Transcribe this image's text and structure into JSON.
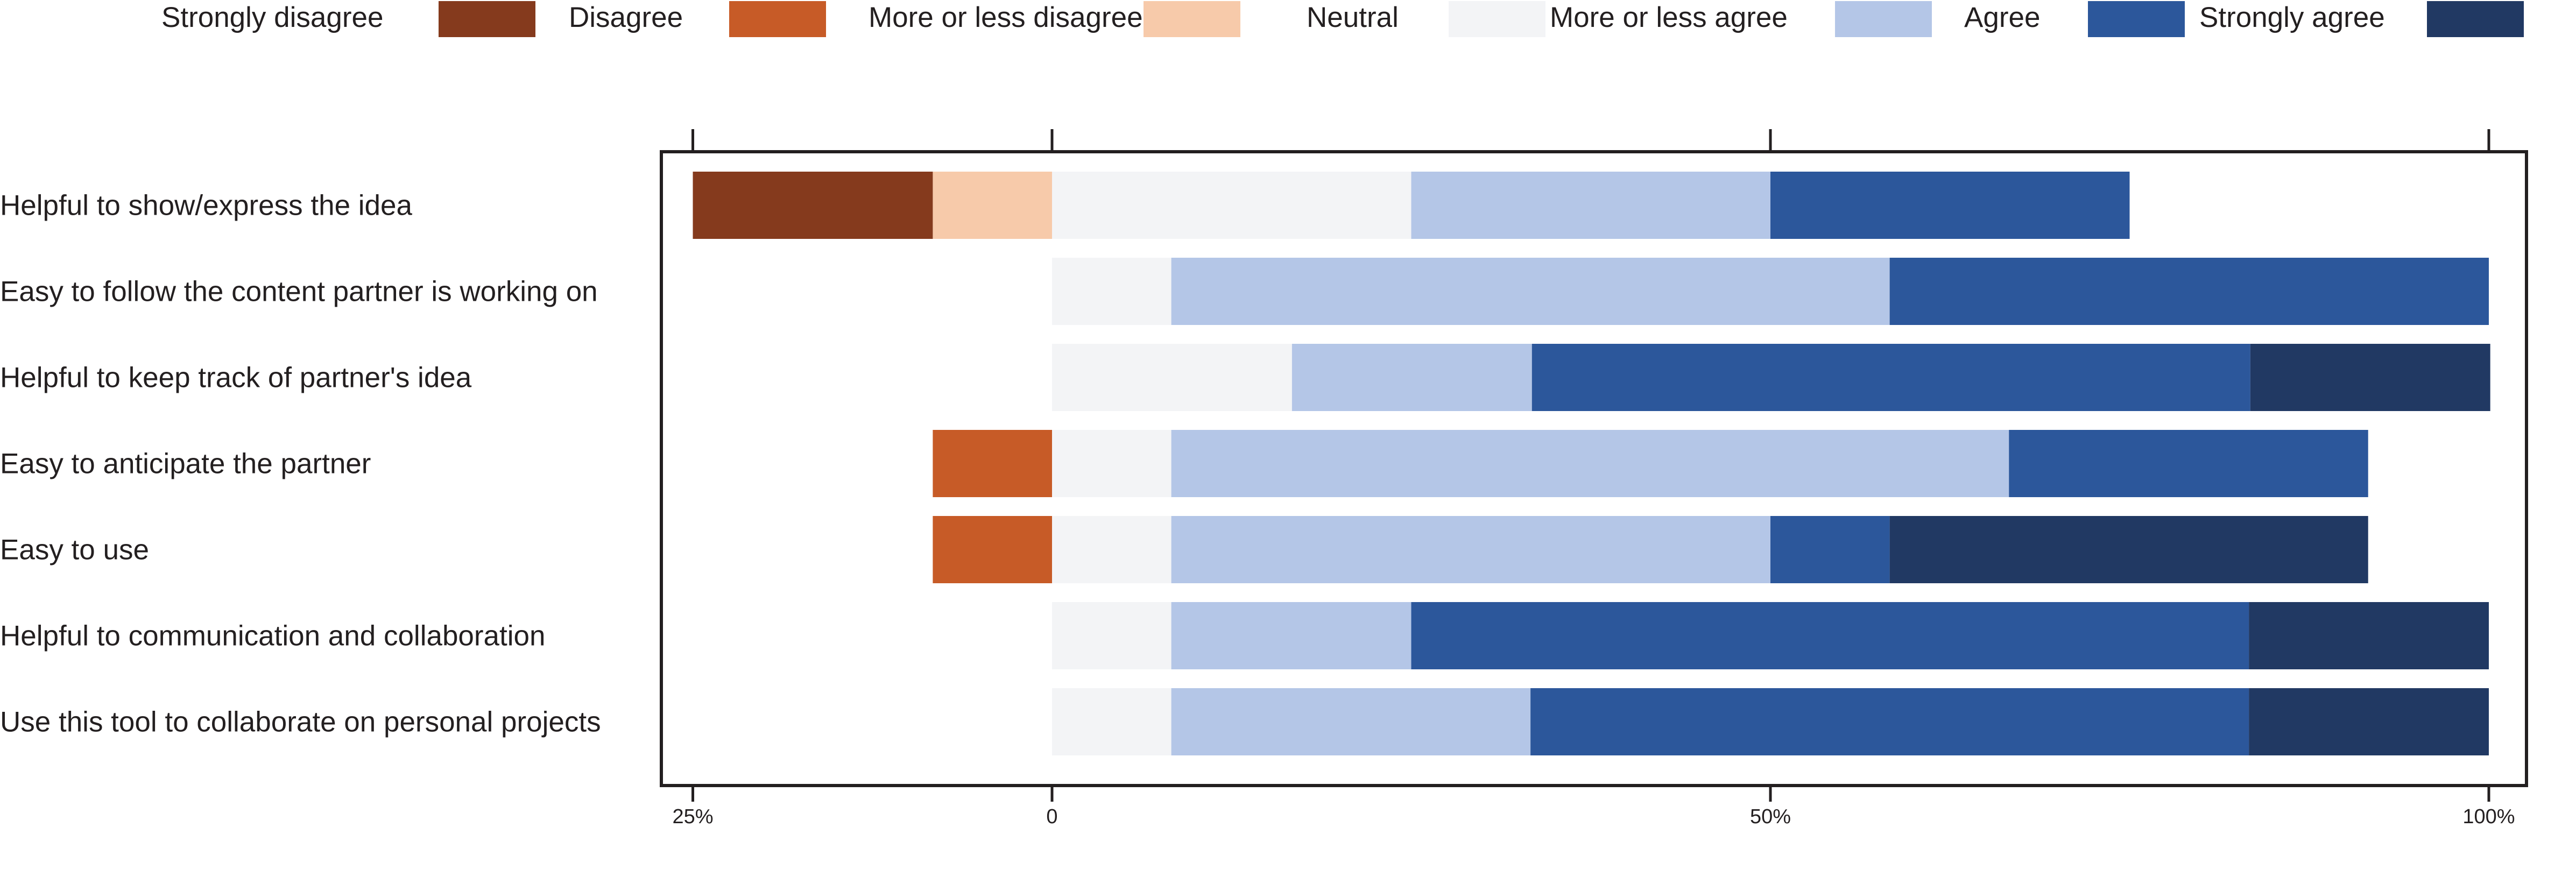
{
  "chart_data": {
    "type": "bar",
    "orientation": "horizontal",
    "stacked": "diverging",
    "legend": {
      "position": "top",
      "entries": [
        {
          "label": "Strongly disagree",
          "color": "#853a1d"
        },
        {
          "label": "Disagree",
          "color": "#c75b27"
        },
        {
          "label": "More or less disagree",
          "color": "#f7caaa"
        },
        {
          "label": "Neutral",
          "color": "#f3f4f6"
        },
        {
          "label": "More or less agree",
          "color": "#b4c6e7"
        },
        {
          "label": "Agree",
          "color": "#2c579b"
        },
        {
          "label": "Strongly agree",
          "color": "#213963"
        }
      ]
    },
    "xlim": [
      -25,
      100
    ],
    "xticks": [
      {
        "value": -25,
        "label": "25%"
      },
      {
        "value": 0,
        "label": "0"
      },
      {
        "value": 50,
        "label": "50%"
      },
      {
        "value": 100,
        "label": "100%"
      }
    ],
    "categories": [
      "Helpful to show/express the idea",
      "Easy to follow the content partner is working on",
      "Helpful to keep track of partner's idea",
      "Easy to anticipate the partner",
      "Easy to use",
      "Helpful to communication and collaboration",
      "Use this tool to collaborate on personal projects"
    ],
    "series": [
      {
        "name": "Strongly disagree",
        "values": [
          16.7,
          0,
          0,
          0,
          0,
          0,
          0
        ]
      },
      {
        "name": "Disagree",
        "values": [
          0,
          0,
          0,
          8.3,
          8.3,
          0,
          0
        ]
      },
      {
        "name": "More or less disagree",
        "values": [
          8.3,
          0,
          0,
          0,
          0,
          0,
          0
        ]
      },
      {
        "name": "Neutral",
        "values": [
          25,
          8.3,
          16.7,
          8.3,
          8.3,
          8.3,
          8.3
        ]
      },
      {
        "name": "More or less agree",
        "values": [
          25,
          50,
          16.7,
          58.3,
          41.7,
          16.7,
          25
        ]
      },
      {
        "name": "Agree",
        "values": [
          25,
          41.7,
          50,
          25,
          8.3,
          58.3,
          50
        ]
      },
      {
        "name": "Strongly agree",
        "values": [
          0,
          0,
          16.7,
          0,
          33.3,
          16.7,
          16.7
        ]
      }
    ],
    "negative_series": [
      "Strongly disagree",
      "Disagree",
      "More or less disagree"
    ],
    "grid": false
  }
}
